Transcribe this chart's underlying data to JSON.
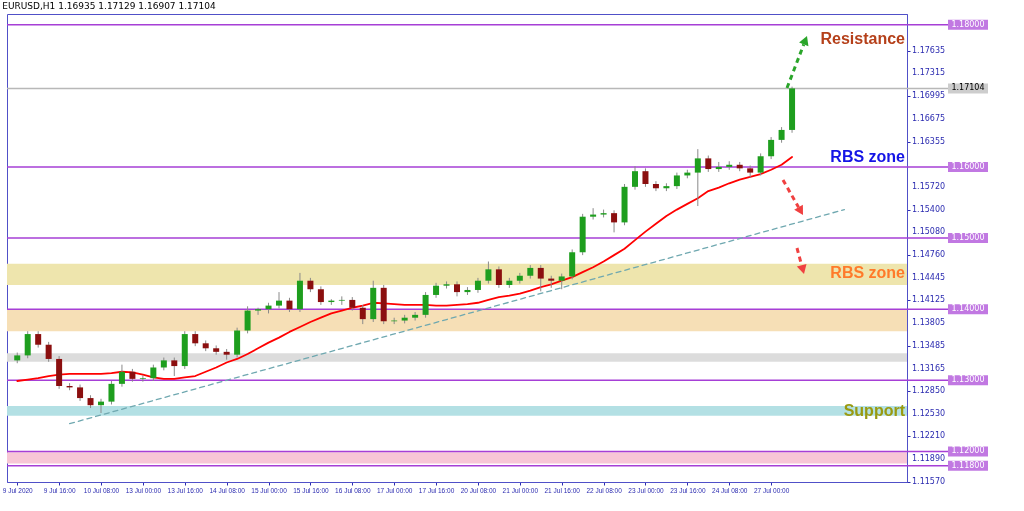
{
  "chart_data": {
    "type": "candlestick",
    "title": "EURUSD,H1 1.16935 1.17129 1.16907 1.17104",
    "categories": [
      "9 Jul 2020",
      null,
      null,
      null,
      "9 Jul 16:00",
      null,
      null,
      null,
      "10 Jul 08:00",
      null,
      null,
      null,
      "13 Jul 00:00",
      null,
      null,
      null,
      "13 Jul 16:00",
      null,
      null,
      null,
      "14 Jul 08:00",
      null,
      null,
      null,
      "15 Jul 00:00",
      null,
      null,
      null,
      "15 Jul 16:00",
      null,
      null,
      null,
      "16 Jul 08:00",
      null,
      null,
      null,
      "17 Jul 00:00",
      null,
      null,
      null,
      "17 Jul 16:00",
      null,
      null,
      null,
      "20 Jul 08:00",
      null,
      null,
      null,
      "21 Jul 00:00",
      null,
      null,
      null,
      "21 Jul 16:00",
      null,
      null,
      null,
      "22 Jul 08:00",
      null,
      null,
      null,
      "23 Jul 00:00",
      null,
      null,
      null,
      "23 Jul 16:00",
      null,
      null,
      null,
      "24 Jul 08:00",
      null,
      null,
      null,
      "27 Jul 00:00",
      null,
      null,
      null,
      null,
      null,
      null,
      null,
      null,
      null,
      null,
      null,
      null
    ],
    "ohlc": [
      [
        1.1328,
        1.1339,
        1.1324,
        1.1335
      ],
      [
        1.1335,
        1.1369,
        1.1331,
        1.1365
      ],
      [
        1.1365,
        1.1369,
        1.1346,
        1.135
      ],
      [
        1.135,
        1.1354,
        1.1326,
        1.133
      ],
      [
        1.133,
        1.1334,
        1.1288,
        1.1292
      ],
      [
        1.1292,
        1.1296,
        1.1286,
        1.129
      ],
      [
        1.129,
        1.1294,
        1.1271,
        1.1275
      ],
      [
        1.1275,
        1.1279,
        1.1261,
        1.1265
      ],
      [
        1.1265,
        1.1274,
        1.1254,
        1.127
      ],
      [
        1.127,
        1.1299,
        1.1266,
        1.1295
      ],
      [
        1.1295,
        1.1322,
        1.1291,
        1.1312
      ],
      [
        1.1312,
        1.1316,
        1.1298,
        1.1302
      ],
      [
        1.1302,
        1.1307,
        1.1298,
        1.1303
      ],
      [
        1.1303,
        1.1322,
        1.1299,
        1.1318
      ],
      [
        1.1318,
        1.1332,
        1.1314,
        1.1328
      ],
      [
        1.1328,
        1.1332,
        1.1306,
        1.132
      ],
      [
        1.132,
        1.1369,
        1.1316,
        1.1365
      ],
      [
        1.1365,
        1.1369,
        1.1348,
        1.1352
      ],
      [
        1.1352,
        1.1356,
        1.1341,
        1.1345
      ],
      [
        1.1345,
        1.1349,
        1.1336,
        1.134
      ],
      [
        1.134,
        1.1344,
        1.1329,
        1.1336
      ],
      [
        1.1336,
        1.1374,
        1.1332,
        1.137
      ],
      [
        1.137,
        1.1404,
        1.1366,
        1.1398
      ],
      [
        1.1398,
        1.1402,
        1.1392,
        1.14
      ],
      [
        1.14,
        1.1409,
        1.1394,
        1.1405
      ],
      [
        1.1405,
        1.1424,
        1.1401,
        1.1412
      ],
      [
        1.1412,
        1.1416,
        1.1396,
        1.14
      ],
      [
        1.14,
        1.1451,
        1.1396,
        1.144
      ],
      [
        1.144,
        1.1444,
        1.1424,
        1.1428
      ],
      [
        1.1428,
        1.1432,
        1.1406,
        1.141
      ],
      [
        1.141,
        1.1414,
        1.1406,
        1.1412
      ],
      [
        1.1412,
        1.1418,
        1.1406,
        1.1413
      ],
      [
        1.1413,
        1.1417,
        1.1398,
        1.1402
      ],
      [
        1.1402,
        1.1406,
        1.1379,
        1.1386
      ],
      [
        1.1386,
        1.144,
        1.1382,
        1.143
      ],
      [
        1.143,
        1.1434,
        1.1379,
        1.1383
      ],
      [
        1.1383,
        1.1388,
        1.1379,
        1.1384
      ],
      [
        1.1384,
        1.1392,
        1.138,
        1.1388
      ],
      [
        1.1388,
        1.1396,
        1.1384,
        1.1392
      ],
      [
        1.1392,
        1.1424,
        1.1388,
        1.142
      ],
      [
        1.142,
        1.1437,
        1.1416,
        1.1433
      ],
      [
        1.1433,
        1.1439,
        1.1429,
        1.1435
      ],
      [
        1.1435,
        1.1439,
        1.1418,
        1.1424
      ],
      [
        1.1424,
        1.1431,
        1.142,
        1.1427
      ],
      [
        1.1427,
        1.1444,
        1.1423,
        1.144
      ],
      [
        1.144,
        1.1467,
        1.1436,
        1.1456
      ],
      [
        1.1456,
        1.146,
        1.143,
        1.1434
      ],
      [
        1.1434,
        1.1444,
        1.143,
        1.144
      ],
      [
        1.144,
        1.1451,
        1.1436,
        1.1447
      ],
      [
        1.1447,
        1.1462,
        1.1443,
        1.1458
      ],
      [
        1.1458,
        1.1462,
        1.1425,
        1.1443
      ],
      [
        1.1443,
        1.1447,
        1.143,
        1.144
      ],
      [
        1.144,
        1.145,
        1.1428,
        1.1446
      ],
      [
        1.1446,
        1.1484,
        1.1442,
        1.148
      ],
      [
        1.148,
        1.1534,
        1.1476,
        1.153
      ],
      [
        1.153,
        1.1542,
        1.1526,
        1.1533
      ],
      [
        1.1533,
        1.154,
        1.1529,
        1.1535
      ],
      [
        1.1535,
        1.1539,
        1.1508,
        1.1522
      ],
      [
        1.1522,
        1.1576,
        1.1518,
        1.1572
      ],
      [
        1.1572,
        1.1601,
        1.1568,
        1.1594
      ],
      [
        1.1594,
        1.1598,
        1.1572,
        1.1576
      ],
      [
        1.1576,
        1.158,
        1.1566,
        1.157
      ],
      [
        1.157,
        1.1577,
        1.1566,
        1.1573
      ],
      [
        1.1573,
        1.1592,
        1.1569,
        1.1588
      ],
      [
        1.1588,
        1.1596,
        1.1584,
        1.1592
      ],
      [
        1.1592,
        1.1625,
        1.1545,
        1.1612
      ],
      [
        1.1612,
        1.1616,
        1.1593,
        1.1597
      ],
      [
        1.1597,
        1.1607,
        1.1593,
        1.16
      ],
      [
        1.16,
        1.1608,
        1.1596,
        1.1603
      ],
      [
        1.1603,
        1.1607,
        1.1594,
        1.1598
      ],
      [
        1.1598,
        1.1602,
        1.1585,
        1.1592
      ],
      [
        1.1592,
        1.1619,
        1.1588,
        1.1615
      ],
      [
        1.1615,
        1.1642,
        1.1611,
        1.1638
      ],
      [
        1.1638,
        1.1656,
        1.1634,
        1.1652
      ],
      [
        1.1652,
        1.17129,
        1.1648,
        1.17104
      ],
      null,
      null,
      null,
      null,
      null,
      null,
      null,
      null,
      null,
      null
    ],
    "colors": [
      "#1e9e1e",
      "#1e9e1e",
      "#8b0f0f",
      "#8b0f0f",
      "#8b0f0f",
      "#8b0f0f",
      "#8b0f0f",
      "#8b0f0f",
      "#1e9e1e",
      "#1e9e1e",
      "#1e9e1e",
      "#8b0f0f",
      "#1e9e1e",
      "#1e9e1e",
      "#1e9e1e",
      "#8b0f0f",
      "#1e9e1e",
      "#8b0f0f",
      "#8b0f0f",
      "#8b0f0f",
      "#8b0f0f",
      "#1e9e1e",
      "#1e9e1e",
      "#1e9e1e",
      "#1e9e1e",
      "#1e9e1e",
      "#8b0f0f",
      "#1e9e1e",
      "#8b0f0f",
      "#8b0f0f",
      "#1e9e1e",
      "#1e9e1e",
      "#8b0f0f",
      "#8b0f0f",
      "#1e9e1e",
      "#8b0f0f",
      "#1e9e1e",
      "#1e9e1e",
      "#1e9e1e",
      "#1e9e1e",
      "#1e9e1e",
      "#1e9e1e",
      "#8b0f0f",
      "#1e9e1e",
      "#1e9e1e",
      "#1e9e1e",
      "#8b0f0f",
      "#1e9e1e",
      "#1e9e1e",
      "#1e9e1e",
      "#8b0f0f",
      "#8b0f0f",
      "#1e9e1e",
      "#1e9e1e",
      "#1e9e1e",
      "#1e9e1e",
      "#1e9e1e",
      "#8b0f0f",
      "#1e9e1e",
      "#1e9e1e",
      "#8b0f0f",
      "#8b0f0f",
      "#1e9e1e",
      "#1e9e1e",
      "#1e9e1e",
      "#1e9e1e",
      "#8b0f0f",
      "#1e9e1e",
      "#1e9e1e",
      "#8b0f0f",
      "#8b0f0f",
      "#1e9e1e",
      "#1e9e1e",
      "#1e9e1e",
      "#1e9e1e",
      null,
      null,
      null,
      null,
      null,
      null,
      null,
      null,
      null,
      null
    ],
    "series": [
      {
        "type": "line",
        "color": "#ff0000",
        "values": [
          1.1299,
          1.1301,
          1.1303,
          1.1306,
          1.1308,
          1.1309,
          1.1309,
          1.1309,
          1.1309,
          1.131,
          1.1312,
          1.1311,
          1.1308,
          1.1304,
          1.1302,
          1.1302,
          1.1304,
          1.1306,
          1.1312,
          1.1318,
          1.1325,
          1.133,
          1.1337,
          1.1345,
          1.1353,
          1.136,
          1.1368,
          1.1375,
          1.1382,
          1.1388,
          1.1394,
          1.1398,
          1.1402,
          1.1405,
          1.1409,
          1.1408,
          1.1407,
          1.1406,
          1.1406,
          1.1406,
          1.1405,
          1.1405,
          1.1406,
          1.1407,
          1.1409,
          1.1413,
          1.1417,
          1.1419,
          1.1422,
          1.1426,
          1.1431,
          1.1435,
          1.144,
          1.1445,
          1.1452,
          1.1459,
          1.1467,
          1.1476,
          1.1485,
          1.1497,
          1.1509,
          1.152,
          1.1531,
          1.154,
          1.1548,
          1.1556,
          1.1566,
          1.1571,
          1.1577,
          1.1582,
          1.1586,
          1.159,
          1.1596,
          1.1603,
          1.1614,
          null,
          null,
          null,
          null,
          null,
          null,
          null,
          null,
          null,
          null
        ]
      },
      {
        "type": "line",
        "color": "#6fa8b0",
        "line_style": "dashed",
        "values": [
          null,
          null,
          null,
          null,
          null,
          1.1239,
          null,
          null,
          null,
          null,
          null,
          null,
          null,
          null,
          null,
          null,
          null,
          null,
          null,
          null,
          null,
          null,
          null,
          null,
          null,
          null,
          null,
          null,
          null,
          null,
          null,
          null,
          null,
          null,
          null,
          null,
          null,
          null,
          null,
          null,
          null,
          null,
          null,
          null,
          null,
          null,
          null,
          null,
          null,
          null,
          null,
          null,
          null,
          null,
          null,
          null,
          null,
          null,
          null,
          null,
          null,
          null,
          null,
          null,
          null,
          null,
          null,
          null,
          null,
          null,
          null,
          null,
          null,
          null,
          null,
          null,
          null,
          null,
          null,
          1.154,
          null,
          null,
          null,
          null,
          null
        ]
      }
    ],
    "ylim": [
      1.1157,
      1.1815
    ],
    "yticks": [
      1.17635,
      1.17315,
      1.16995,
      1.16675,
      1.16355,
      {
        "value": 1.1572,
        "label": "1.15720"
      },
      {
        "value": 1.154,
        "label": "1.15400"
      },
      {
        "value": 1.1508,
        "label": "1.15080"
      },
      {
        "value": 1.1476,
        "label": "1.14760"
      },
      1.14445,
      1.14125,
      1.13805,
      1.13485,
      1.13165,
      {
        "value": 1.1285,
        "label": "1.12850"
      },
      {
        "value": 1.1253,
        "label": "1.12530"
      },
      {
        "value": 1.1221,
        "label": "1.12210"
      },
      {
        "value": 1.1189,
        "label": "1.11890"
      },
      {
        "value": 1.1157,
        "label": "1.11570"
      }
    ],
    "ref_lines": [
      {
        "axis": "y",
        "value": 1.18,
        "label": "1.18000",
        "color": "#a63fd6"
      },
      {
        "axis": "y",
        "value": 1.17104,
        "label": "1.17104",
        "color": "#b8b8b8"
      },
      {
        "axis": "y",
        "value": 1.16,
        "label": "1.16000",
        "color": "#a63fd6"
      },
      {
        "axis": "y",
        "value": 1.15,
        "label": "1.15000",
        "color": "#a63fd6"
      },
      {
        "axis": "y",
        "value": 1.14,
        "label": "1.14000",
        "color": "#a63fd6"
      },
      {
        "axis": "y",
        "value": 1.13,
        "label": "1.13000",
        "color": "#a63fd6"
      },
      {
        "axis": "y",
        "value": 1.12,
        "label": "1.12000",
        "color": "#a63fd6"
      },
      {
        "axis": "y",
        "value": 1.118,
        "label": "1.11800",
        "color": "#a63fd6"
      }
    ],
    "bands": [
      {
        "axis": "y",
        "from": 1.1434,
        "to": 1.1464,
        "color": "#eee5ad"
      },
      {
        "axis": "y",
        "from": 1.1369,
        "to": 1.14,
        "color": "#f6dfb6"
      },
      {
        "axis": "y",
        "from": 1.1326,
        "to": 1.1338,
        "color": "#dcdcdc"
      },
      {
        "axis": "y",
        "from": 1.125,
        "to": 1.1264,
        "color": "#b3e0e4"
      },
      {
        "axis": "y",
        "from": 1.1183,
        "to": 1.1199,
        "color": "#f7c6d6"
      }
    ],
    "annotations": [
      {
        "text": "Resistance",
        "y": 1.18
      },
      {
        "text": "RBS zone",
        "y": 1.16
      },
      "RBS zone",
      {
        "text": "Support",
        "y": 1.1257
      }
    ],
    "grid": false
  }
}
